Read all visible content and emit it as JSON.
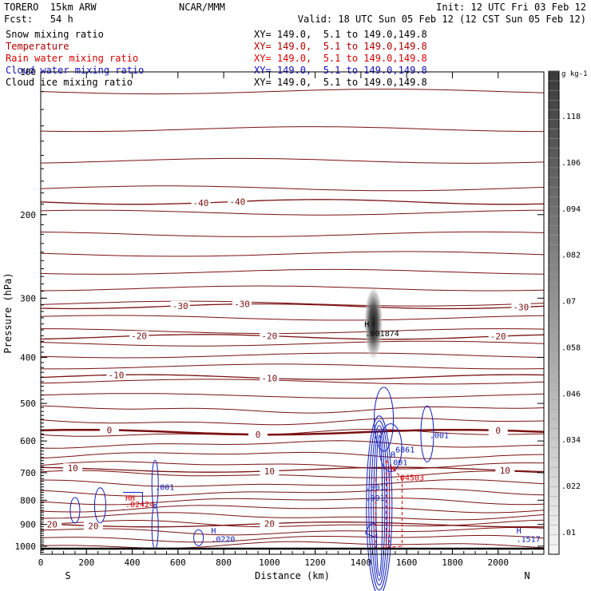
{
  "header": {
    "model": "TORERO  15km ARW",
    "forecast": "Fcst:   54 h",
    "org": "NCAR/MMM",
    "init": "Init: 12 UTC Fri 03 Feb 12",
    "valid": "Valid: 18 UTC Sun 05 Feb 12 (12 CST Sun 05 Feb 12)"
  },
  "fields": [
    {
      "label": "Snow mixing ratio",
      "xy": "XY= 149.0,  5.1 to 149.0,149.8",
      "color": "#000000"
    },
    {
      "label": "Temperature",
      "xy": "XY= 149.0,  5.1 to 149.0,149.8",
      "color": "#b00000"
    },
    {
      "label": "Rain water mixing ratio",
      "xy": "XY= 149.0,  5.1 to 149.0,149.8",
      "color": "#d80000"
    },
    {
      "label": "Cloud water mixing ratio",
      "xy": "XY= 149.0,  5.1 to 149.0,149.8",
      "color": "#1010c8"
    },
    {
      "label": "Cloud ice mixing ratio",
      "xy": "XY= 149.0,  5.1 to 149.0,149.8",
      "color": "#000000"
    }
  ],
  "colors": {
    "temperature": "#7a1010",
    "rain": "#e00000",
    "cloud_water": "#1020c0",
    "snow": "#000000"
  },
  "chart_data": {
    "type": "contour cross-section",
    "xlabel": "Distance (km)",
    "ylabel": "Pressure (hPa)",
    "x_ticks": [
      0,
      200,
      400,
      600,
      800,
      1000,
      1200,
      1400,
      1600,
      1800,
      2000
    ],
    "y_ticks": [
      100,
      200,
      300,
      400,
      500,
      600,
      700,
      800,
      900,
      1000
    ],
    "xlim": [
      0,
      2200
    ],
    "ylim": [
      1040,
      100
    ],
    "y_scale": "log",
    "endpoints": {
      "left": "S",
      "right": "N"
    },
    "colorbar": {
      "unit": "g kg-1",
      "ticks": [
        ".01",
        ".022",
        ".034",
        ".046",
        ".058",
        ".07",
        ".082",
        ".094",
        ".106",
        ".118"
      ]
    },
    "temperature_contours": [
      {
        "label": "-40",
        "p": 188,
        "labels_at": [
          700,
          860
        ]
      },
      {
        "label": "-30",
        "p": 312,
        "labels_at": [
          610,
          880,
          2100
        ]
      },
      {
        "label": "-20",
        "p": 362,
        "labels_at": [
          430,
          1000,
          2000
        ]
      },
      {
        "label": "-10",
        "p": 440,
        "labels_at": [
          330,
          1000
        ]
      },
      {
        "label": "0",
        "p": 575,
        "labels_at": [
          300,
          950,
          2000
        ]
      },
      {
        "label": "10",
        "p": 690,
        "labels_at": [
          140,
          1000,
          2030
        ]
      },
      {
        "label": "20",
        "p": 900,
        "labels_at": [
          50,
          230,
          1000
        ]
      }
    ],
    "annotations": [
      {
        "text": "H",
        "x": 1415,
        "p": 340,
        "color": "#000000"
      },
      {
        "text": ".001874",
        "x": 1420,
        "p": 355,
        "color": "#000000"
      },
      {
        "text": ".001",
        "x": 1700,
        "p": 582,
        "color": "#1020c0"
      },
      {
        "text": ".6861",
        "x": 1530,
        "p": 625,
        "color": "#1020c0"
      },
      {
        "text": ".001",
        "x": 1520,
        "p": 665,
        "color": "#1020c0"
      },
      {
        "text": "H",
        "x": 1530,
        "p": 640,
        "color": "#1020c0"
      },
      {
        "text": "H",
        "x": 1530,
        "p": 685,
        "color": "#e00000"
      },
      {
        "text": ".04503",
        "x": 1550,
        "p": 715,
        "color": "#e00000"
      },
      {
        "text": ".001",
        "x": 500,
        "p": 750,
        "color": "#1020c0"
      },
      {
        "text": ".001",
        "x": 1420,
        "p": 750,
        "color": "#1020c0"
      },
      {
        "text": ".001",
        "x": 1420,
        "p": 790,
        "color": "#1020c0"
      },
      {
        "text": "HH",
        "x": 370,
        "p": 790,
        "color": "#e00000"
      },
      {
        "text": ".02424",
        "x": 370,
        "p": 815,
        "color": "#e00000"
      },
      {
        "text": "H",
        "x": 745,
        "p": 925,
        "color": "#1020c0"
      },
      {
        "text": ".0220",
        "x": 745,
        "p": 965,
        "color": "#1020c0"
      },
      {
        "text": "H",
        "x": 2080,
        "p": 925,
        "color": "#1020c0"
      },
      {
        "text": ".1517",
        "x": 2080,
        "p": 965,
        "color": "#1020c0"
      }
    ]
  }
}
